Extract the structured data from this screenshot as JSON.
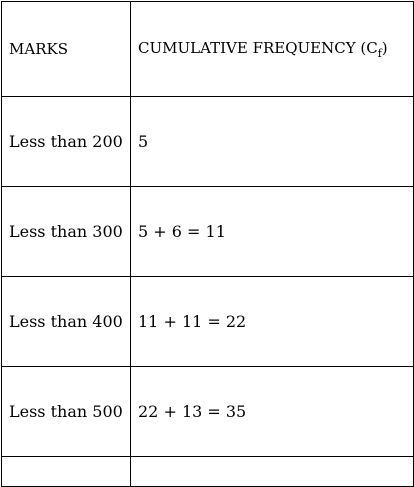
{
  "table": {
    "headers": {
      "marks": "MARKS",
      "cf_prefix": "CUMULATIVE FREQUENCY (C",
      "cf_sub": "f",
      "cf_suffix": ")"
    },
    "rows": [
      {
        "marks": "Less than 200",
        "cf": "5"
      },
      {
        "marks": "Less than 300",
        "cf": "5 + 6 = 11"
      },
      {
        "marks": "Less than 400",
        "cf": "11 + 11 = 22"
      },
      {
        "marks": "Less than 500",
        "cf": "22 + 13 = 35"
      }
    ]
  }
}
